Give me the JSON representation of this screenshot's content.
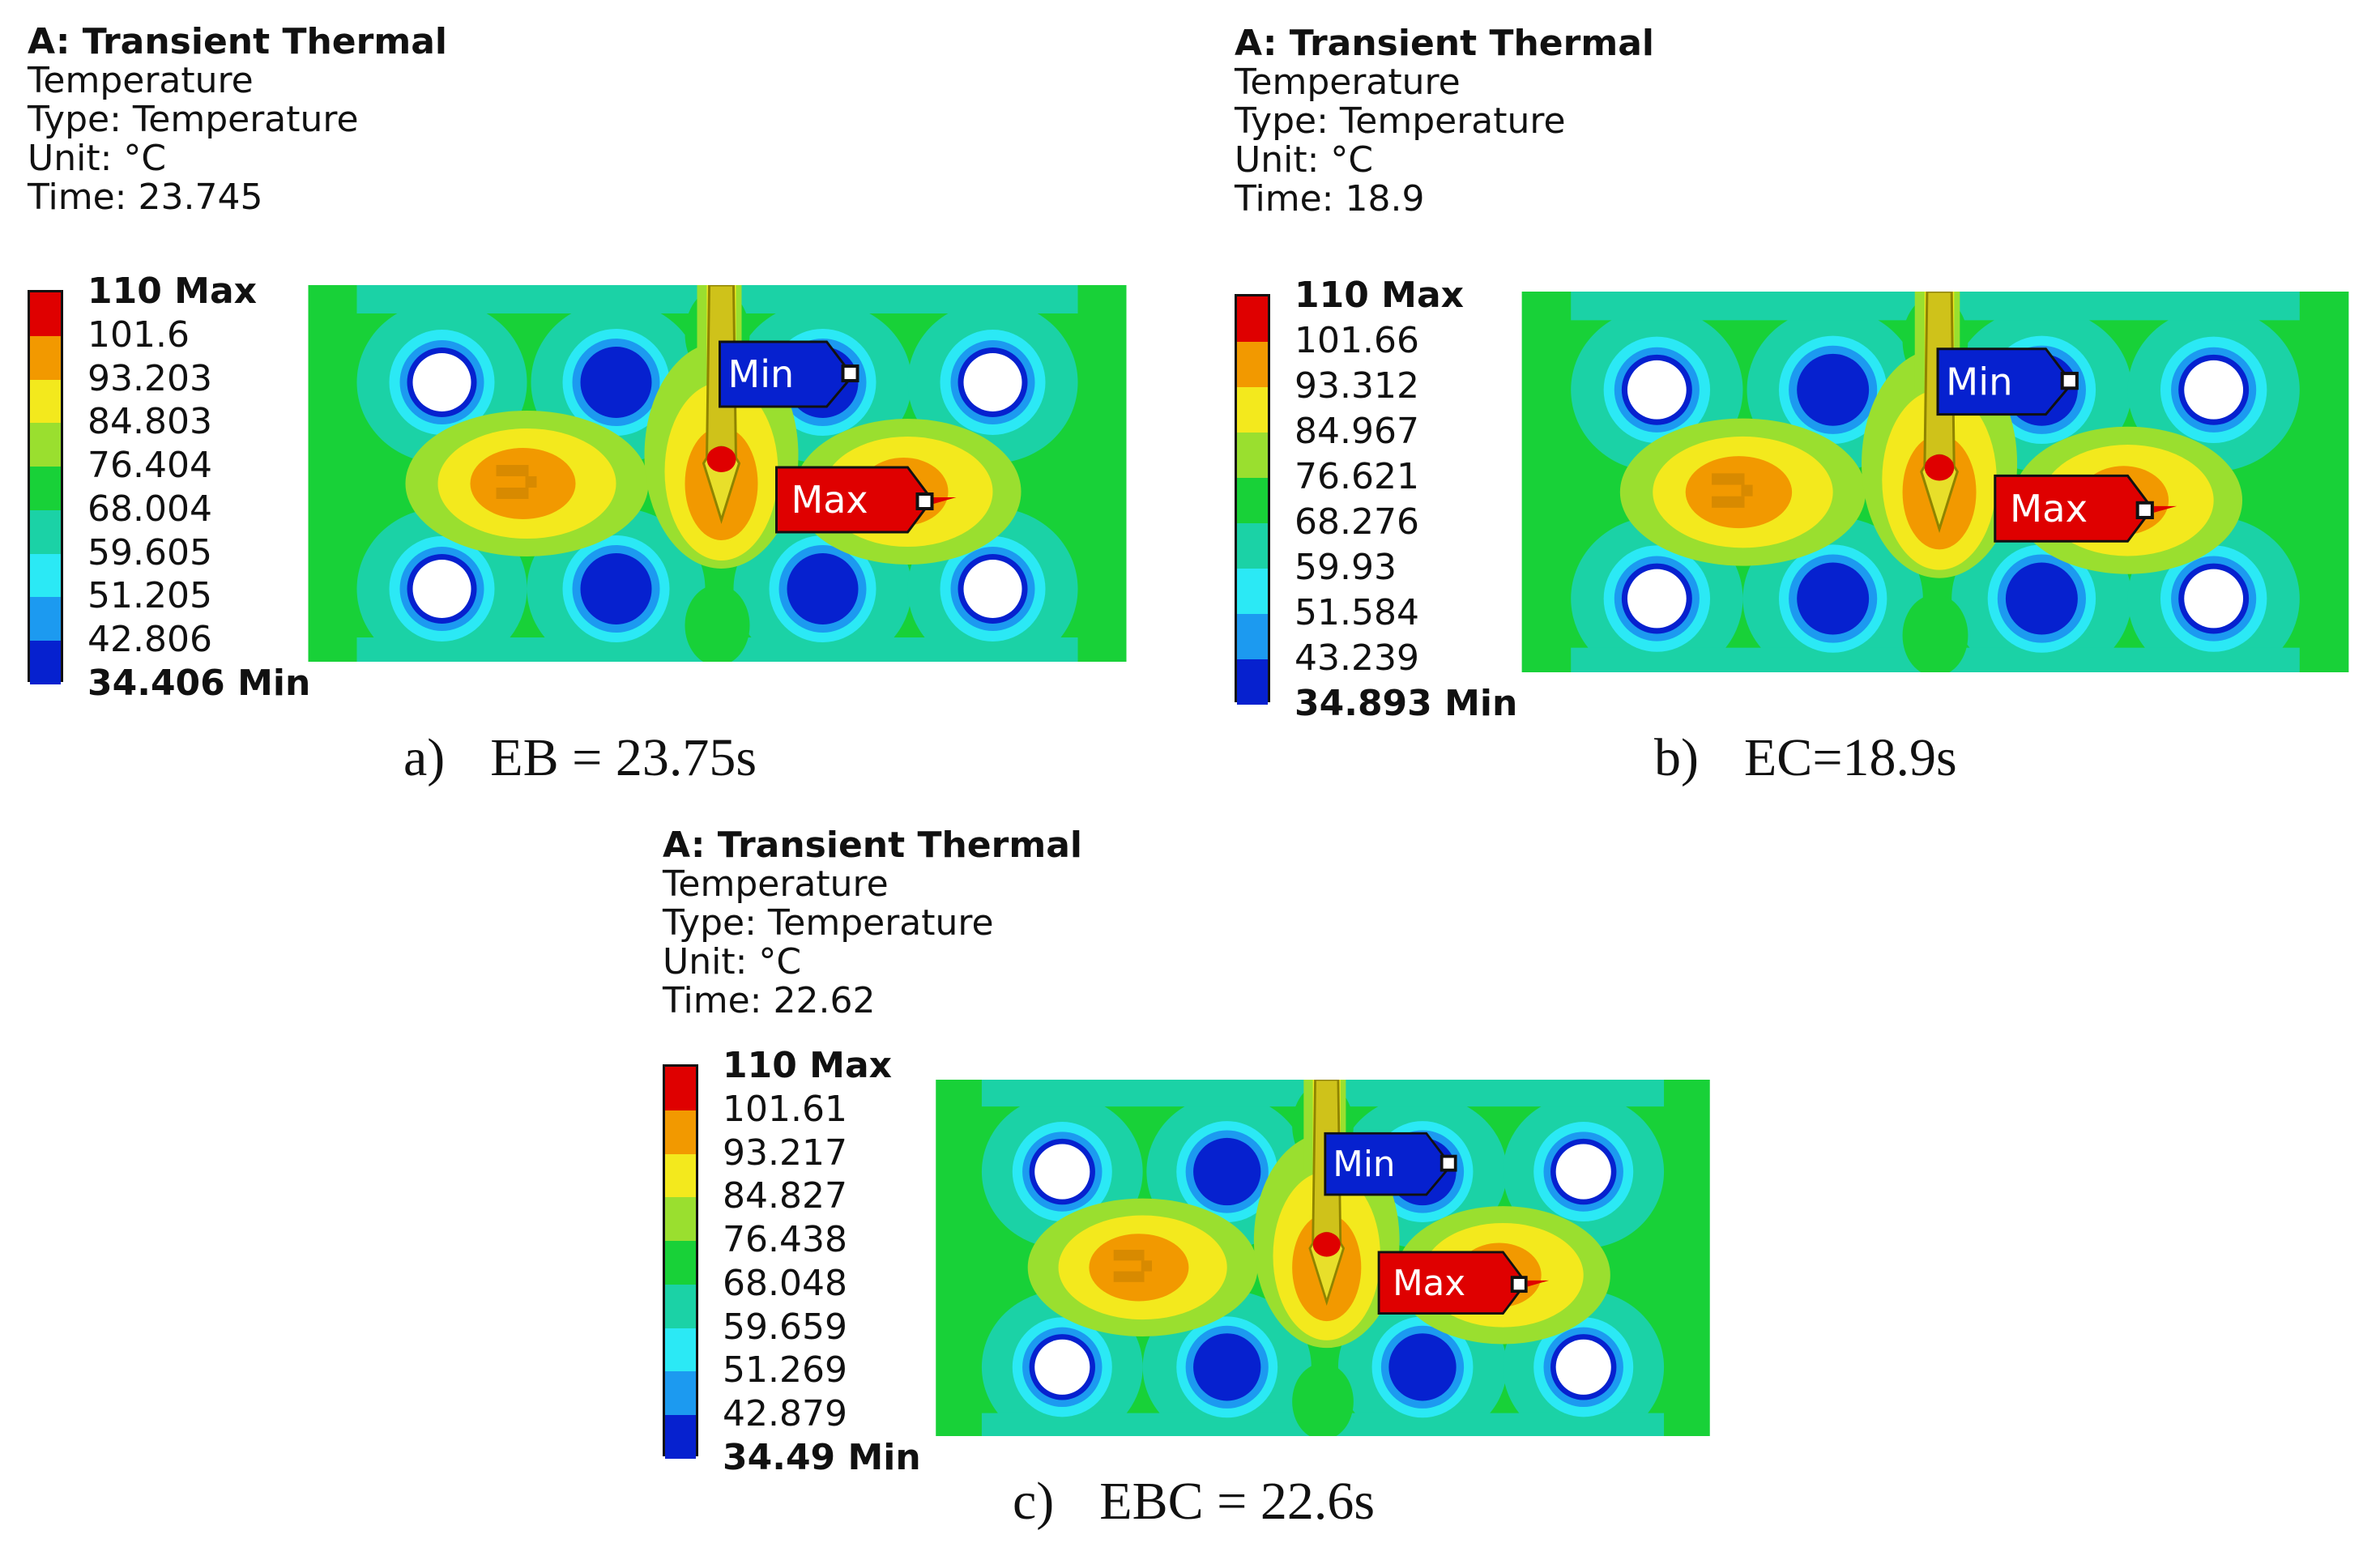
{
  "colors": [
    "#df0000",
    "#f29900",
    "#f3e91d",
    "#9adf2f",
    "#18d138",
    "#1bd2a6",
    "#2be9f5",
    "#1c9af0",
    "#0621cf"
  ],
  "panels": [
    {
      "analysis": "A: Transient Thermal",
      "result": "Temperature",
      "type_line": "Type: Temperature",
      "unit_line": "Unit: °C",
      "time_line": "Time: 23.745",
      "legend_labels": [
        "110 Max",
        "101.6",
        "93.203",
        "84.803",
        "76.404",
        "68.004",
        "59.605",
        "51.205",
        "42.806",
        "34.406 Min"
      ],
      "min_tag": "Min",
      "max_tag": "Max",
      "caption_letter": "a)",
      "caption_text": "EB = 23.75s"
    },
    {
      "analysis": "A: Transient Thermal",
      "result": "Temperature",
      "type_line": "Type: Temperature",
      "unit_line": "Unit: °C",
      "time_line": "Time: 18.9",
      "legend_labels": [
        "110 Max",
        "101.66",
        "93.312",
        "84.967",
        "76.621",
        "68.276",
        "59.93",
        "51.584",
        "43.239",
        "34.893 Min"
      ],
      "min_tag": "Min",
      "max_tag": "Max",
      "caption_letter": "b)",
      "caption_text": "EC=18.9s"
    },
    {
      "analysis": "A: Transient Thermal",
      "result": "Temperature",
      "type_line": "Type: Temperature",
      "unit_line": "Unit: °C",
      "time_line": "Time: 22.62",
      "legend_labels": [
        "110 Max",
        "101.61",
        "93.217",
        "84.827",
        "76.438",
        "68.048",
        "59.659",
        "51.269",
        "42.879",
        "34.49 Min"
      ],
      "min_tag": "Min",
      "max_tag": "Max",
      "caption_letter": "c)",
      "caption_text": "EBC = 22.6s"
    }
  ]
}
